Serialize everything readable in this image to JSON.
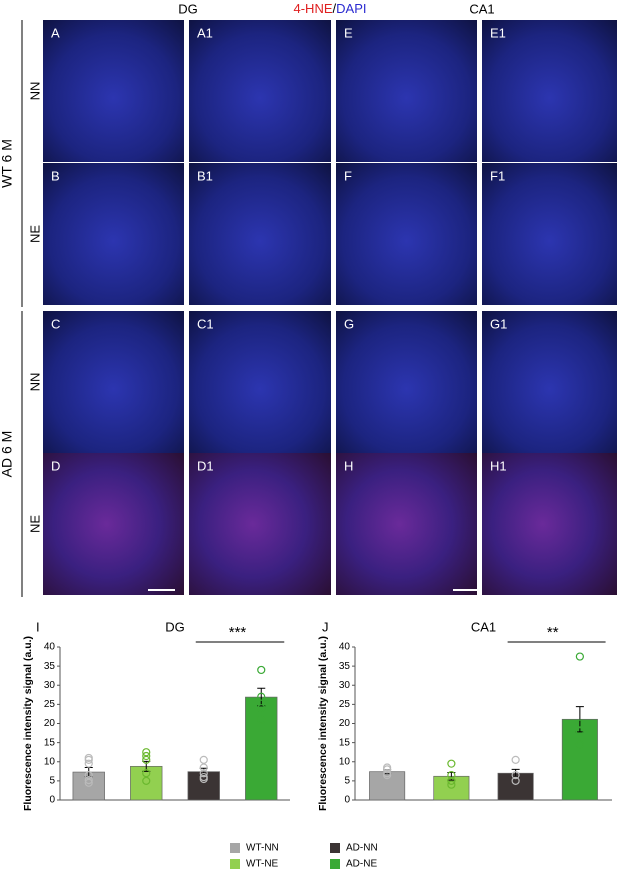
{
  "figure": {
    "header": {
      "region_left": "DG",
      "marker": "4-HNE",
      "separator": "/",
      "nuclear": "DAPI",
      "region_right": "CA1"
    },
    "groups": [
      {
        "label": "WT 6 M",
        "rows": [
          {
            "label": "NN",
            "panels": [
              "A",
              "A1",
              "E",
              "E1"
            ]
          },
          {
            "label": "NE",
            "panels": [
              "B",
              "B1",
              "F",
              "F1"
            ]
          }
        ]
      },
      {
        "label": "AD 6 M",
        "rows": [
          {
            "label": "NN",
            "panels": [
              "C",
              "C1",
              "G",
              "G1"
            ]
          },
          {
            "label": "NE",
            "panels": [
              "D",
              "D1",
              "H",
              "H1"
            ]
          }
        ]
      }
    ]
  },
  "chart_data": [
    {
      "type": "bar",
      "panel_label": "I",
      "title": "DG",
      "ylabel": "Fluorescence intensity signal (a.u.)",
      "ylim": [
        0,
        40
      ],
      "yticks": [
        0,
        5,
        10,
        15,
        20,
        25,
        30,
        35,
        40
      ],
      "significance": "***",
      "series": [
        {
          "name": "WT-NN",
          "color": "#a6a6a6",
          "values": [
            7.3
          ],
          "errors": [
            1.2
          ],
          "points": [
            4.5,
            5.2,
            6.5,
            9.5,
            10.5,
            11
          ]
        },
        {
          "name": "WT-NE",
          "color": "#92d050",
          "values": [
            8.8
          ],
          "errors": [
            1.3
          ],
          "points": [
            5,
            7,
            10.5,
            11.5,
            12.5
          ]
        },
        {
          "name": "AD-NN",
          "color": "#3b3434",
          "values": [
            7.4
          ],
          "errors": [
            0.9
          ],
          "points": [
            5.5,
            6,
            7,
            8.5,
            10.5
          ]
        },
        {
          "name": "AD-NE",
          "color": "#3aa935",
          "values": [
            26.9
          ],
          "errors": [
            2.3
          ],
          "points": [
            21,
            24,
            27,
            34
          ]
        }
      ]
    },
    {
      "type": "bar",
      "panel_label": "J",
      "title": "CA1",
      "ylabel": "Fluorescence intensity signal (a.u.)",
      "ylim": [
        0,
        40
      ],
      "yticks": [
        0,
        5,
        10,
        15,
        20,
        25,
        30,
        35,
        40
      ],
      "significance": "**",
      "series": [
        {
          "color": "#a6a6a6",
          "values": [
            7.4
          ],
          "errors": [
            0.5
          ],
          "points": [
            6.5,
            7,
            8,
            8.5
          ]
        },
        {
          "color": "#92d050",
          "values": [
            6.2
          ],
          "errors": [
            1.0
          ],
          "points": [
            4,
            5,
            6.5,
            9.5
          ]
        },
        {
          "color": "#3b3434",
          "values": [
            7.0
          ],
          "errors": [
            1.0
          ],
          "points": [
            5,
            6.5,
            10.5
          ]
        },
        {
          "color": "#3aa935",
          "values": [
            21.1
          ],
          "errors": [
            3.3
          ],
          "points": [
            14.5,
            18,
            20,
            37.5
          ]
        }
      ]
    }
  ]
}
